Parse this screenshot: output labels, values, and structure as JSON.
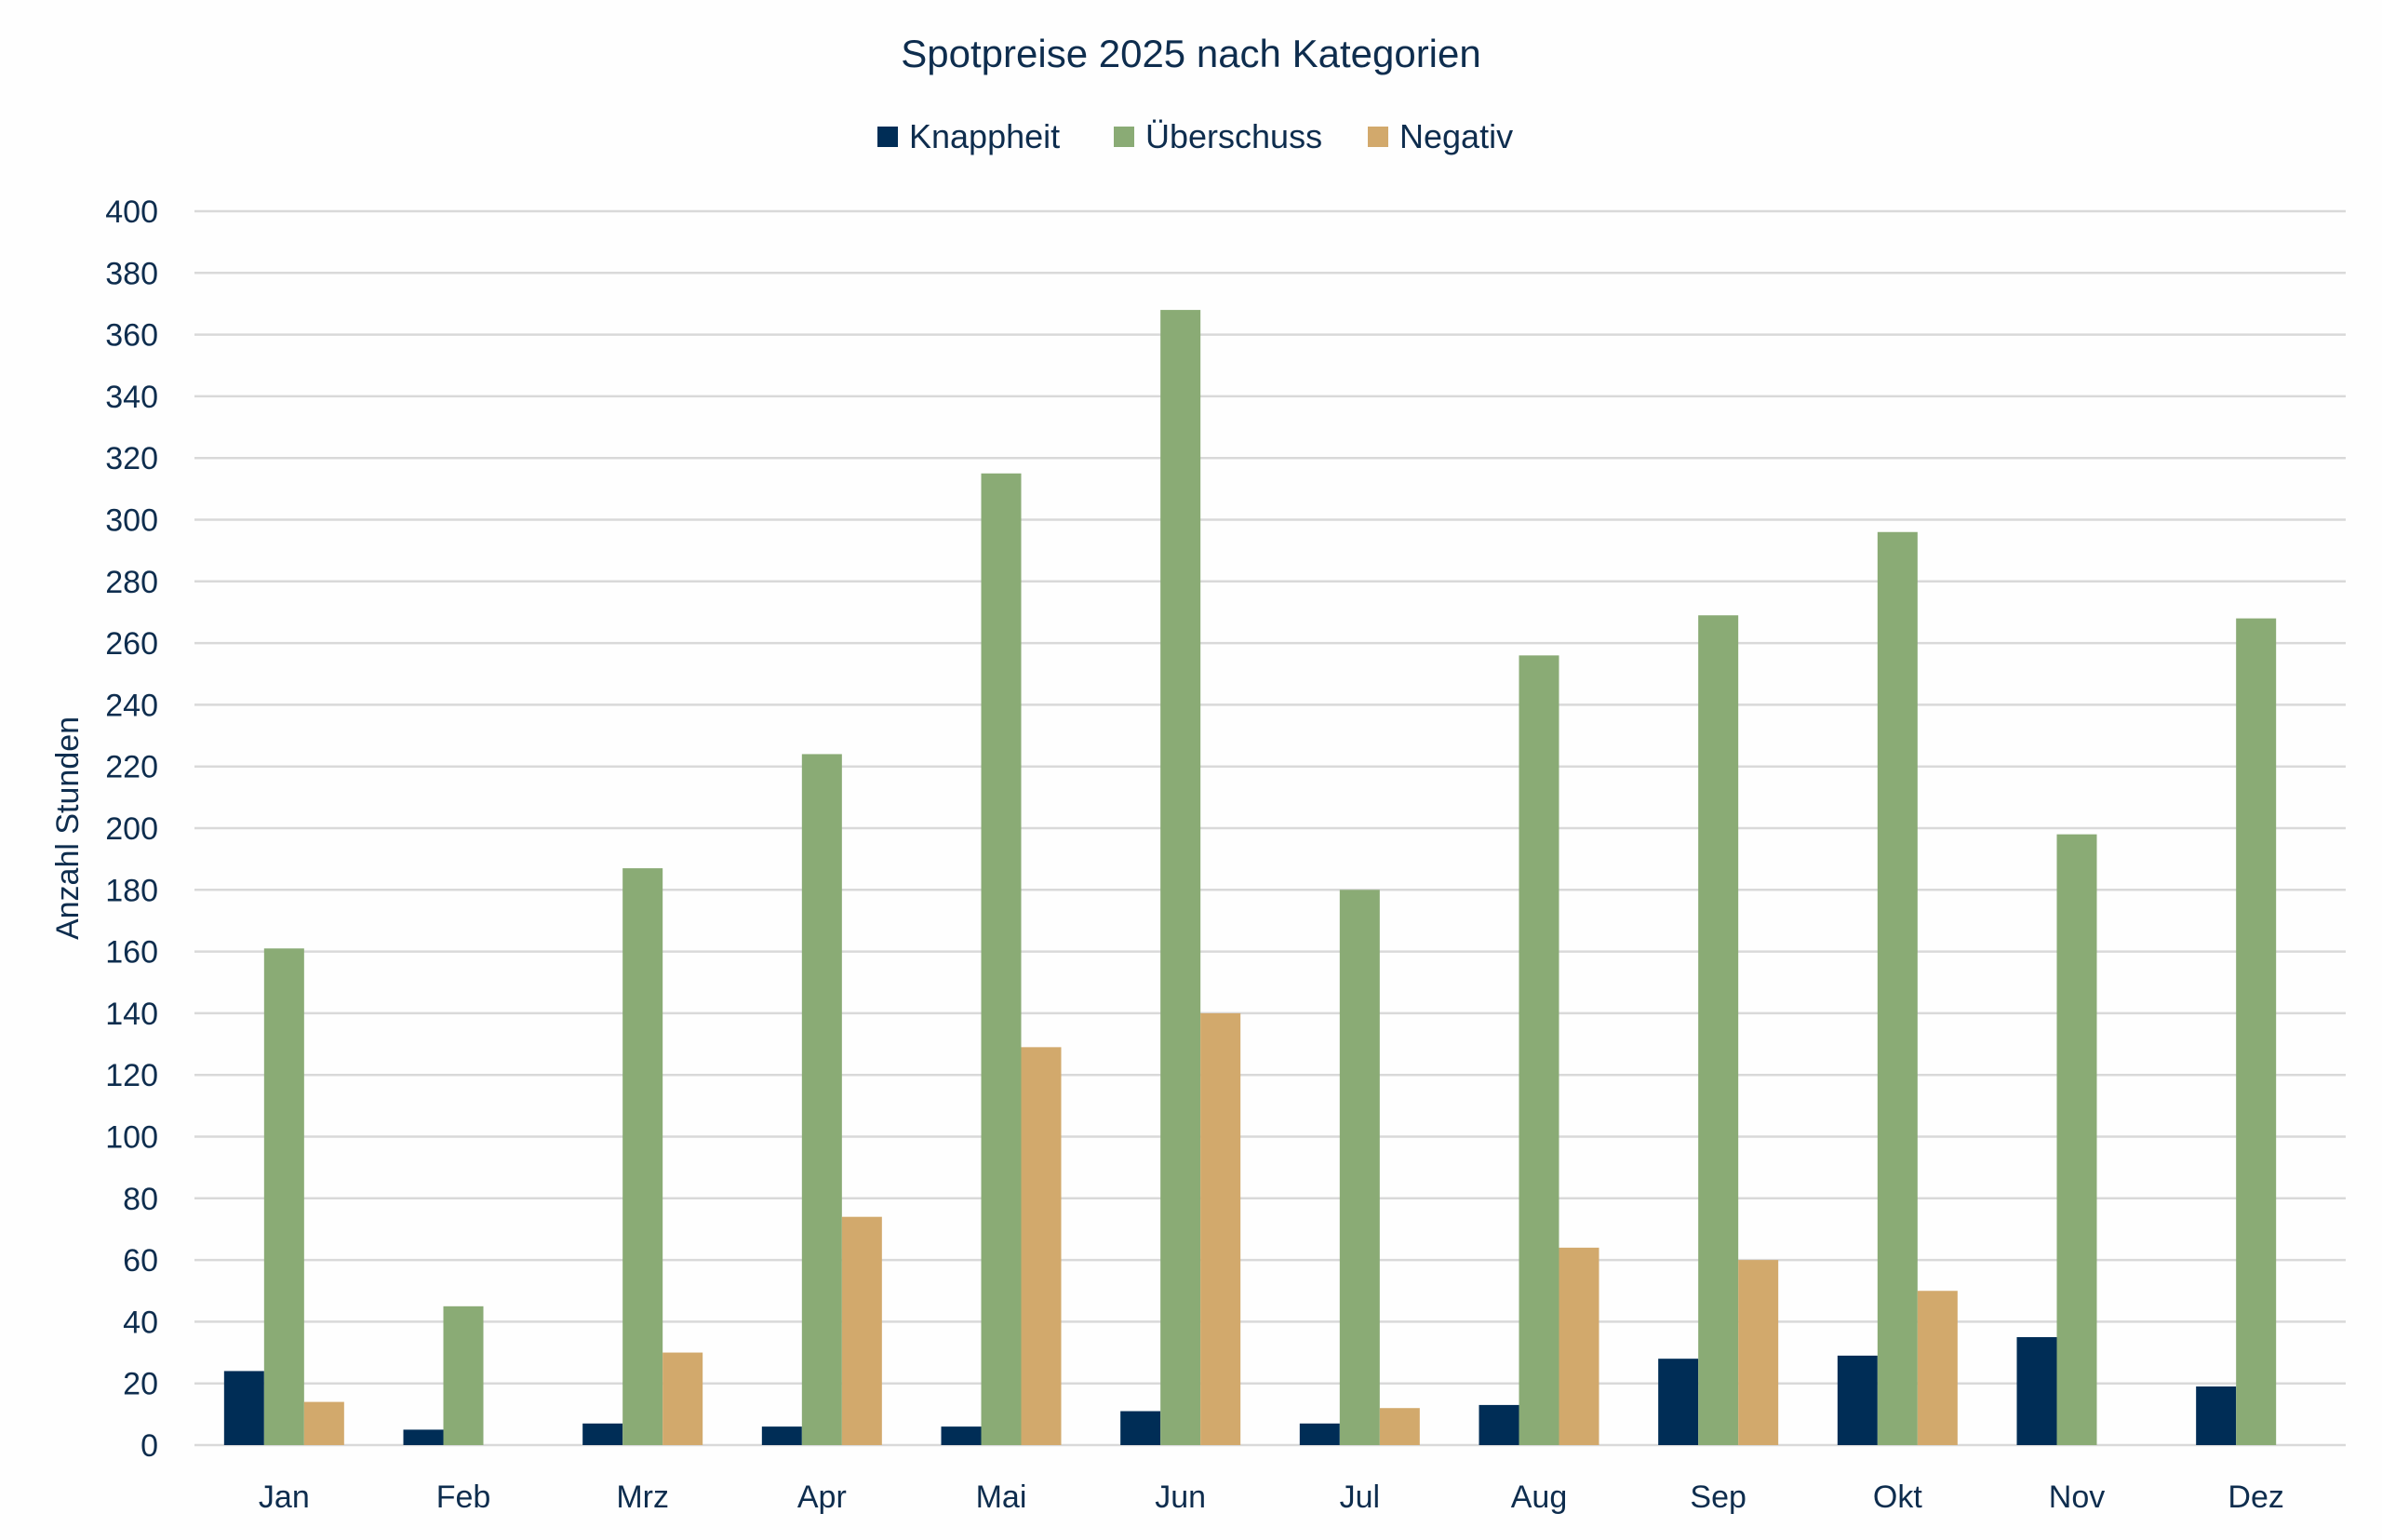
{
  "chart_data": {
    "type": "bar",
    "title": "Spotpreise 2025 nach Kategorien",
    "xlabel": "",
    "ylabel": "Anzahl Stunden",
    "ylim": [
      0,
      400
    ],
    "yticks": [
      0,
      20,
      40,
      60,
      80,
      100,
      120,
      140,
      160,
      180,
      200,
      220,
      240,
      260,
      280,
      300,
      320,
      340,
      360,
      380,
      400
    ],
    "grid": true,
    "legend_position": "top",
    "categories": [
      "Jan",
      "Feb",
      "Mrz",
      "Apr",
      "Mai",
      "Jun",
      "Jul",
      "Aug",
      "Sep",
      "Okt",
      "Nov",
      "Dez"
    ],
    "series": [
      {
        "name": "Knappheit",
        "color": "#002d56",
        "values": [
          24,
          5,
          7,
          6,
          6,
          11,
          7,
          13,
          28,
          29,
          35,
          19
        ]
      },
      {
        "name": "Überschuss",
        "color": "#8aab75",
        "values": [
          161,
          45,
          187,
          224,
          315,
          368,
          180,
          256,
          269,
          296,
          198,
          268
        ]
      },
      {
        "name": "Negativ",
        "color": "#d2a96c",
        "values": [
          14,
          0,
          30,
          74,
          129,
          140,
          12,
          64,
          60,
          50,
          0,
          0
        ]
      }
    ]
  }
}
